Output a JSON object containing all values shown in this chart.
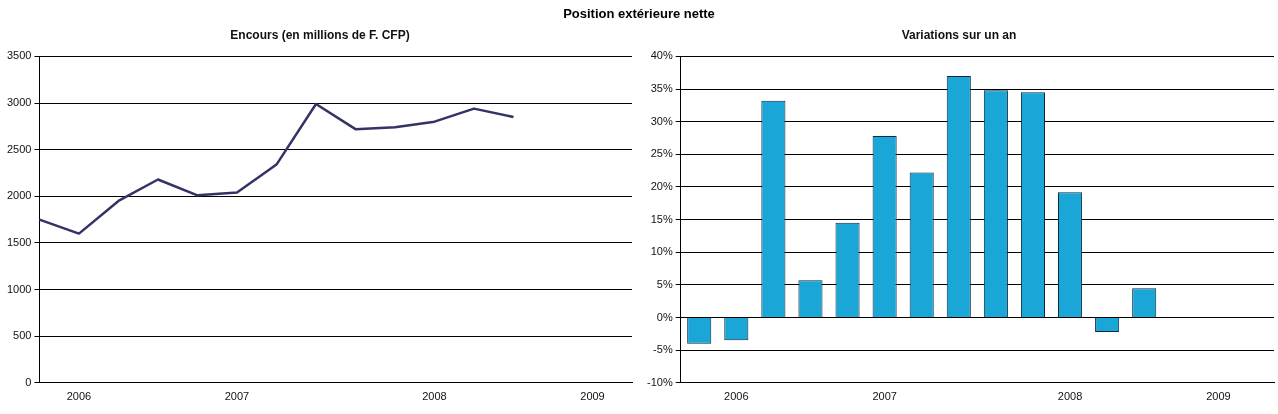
{
  "chart_data": [
    {
      "type": "line",
      "title": "Position extérieure nette",
      "subtitle": "Encours (en millions de F. CFP)",
      "categories": [
        null,
        "2006",
        null,
        null,
        null,
        "2007",
        null,
        null,
        null,
        null,
        "2008",
        null,
        null,
        null,
        "2009",
        null
      ],
      "series": [
        {
          "color": "#333366",
          "values": [
            1750,
            1600,
            1950,
            2180,
            2010,
            2040,
            2340,
            2990,
            2720,
            2740,
            2800,
            2940,
            2850,
            null,
            null,
            null
          ]
        }
      ],
      "ylim": [
        0,
        3500
      ],
      "yticks": [
        0,
        500,
        1000,
        1500,
        2000,
        2500,
        3000,
        3500
      ],
      "grid": "y",
      "legend": false,
      "marker": "none",
      "line_style": "solid"
    },
    {
      "type": "bar",
      "subtitle": "Variations sur un an",
      "categories": [
        null,
        "2006",
        null,
        null,
        null,
        "2007",
        null,
        null,
        null,
        null,
        "2008",
        null,
        null,
        null,
        "2009",
        null
      ],
      "series": [
        {
          "color": "#1aa6d6",
          "values": [
            -4.0,
            -3.5,
            33.2,
            5.7,
            14.5,
            27.8,
            22.2,
            37.0,
            34.8,
            34.5,
            19.2,
            -2.2,
            4.5,
            null,
            null,
            null
          ]
        }
      ],
      "ylim": [
        -10,
        40
      ],
      "yticks": [
        {
          "value": -10,
          "label": "-10%"
        },
        {
          "value": -5,
          "label": "-5%"
        },
        {
          "value": 0,
          "label": "0%"
        },
        {
          "value": 5,
          "label": "5%"
        },
        {
          "value": 10,
          "label": "10%"
        },
        {
          "value": 15,
          "label": "15%"
        },
        {
          "value": 20,
          "label": "20%"
        },
        {
          "value": 25,
          "label": "25%"
        },
        {
          "value": 30,
          "label": "30%"
        },
        {
          "value": 35,
          "label": "35%"
        },
        {
          "value": 40,
          "label": "40%"
        }
      ],
      "grid": "y",
      "legend": false
    }
  ]
}
